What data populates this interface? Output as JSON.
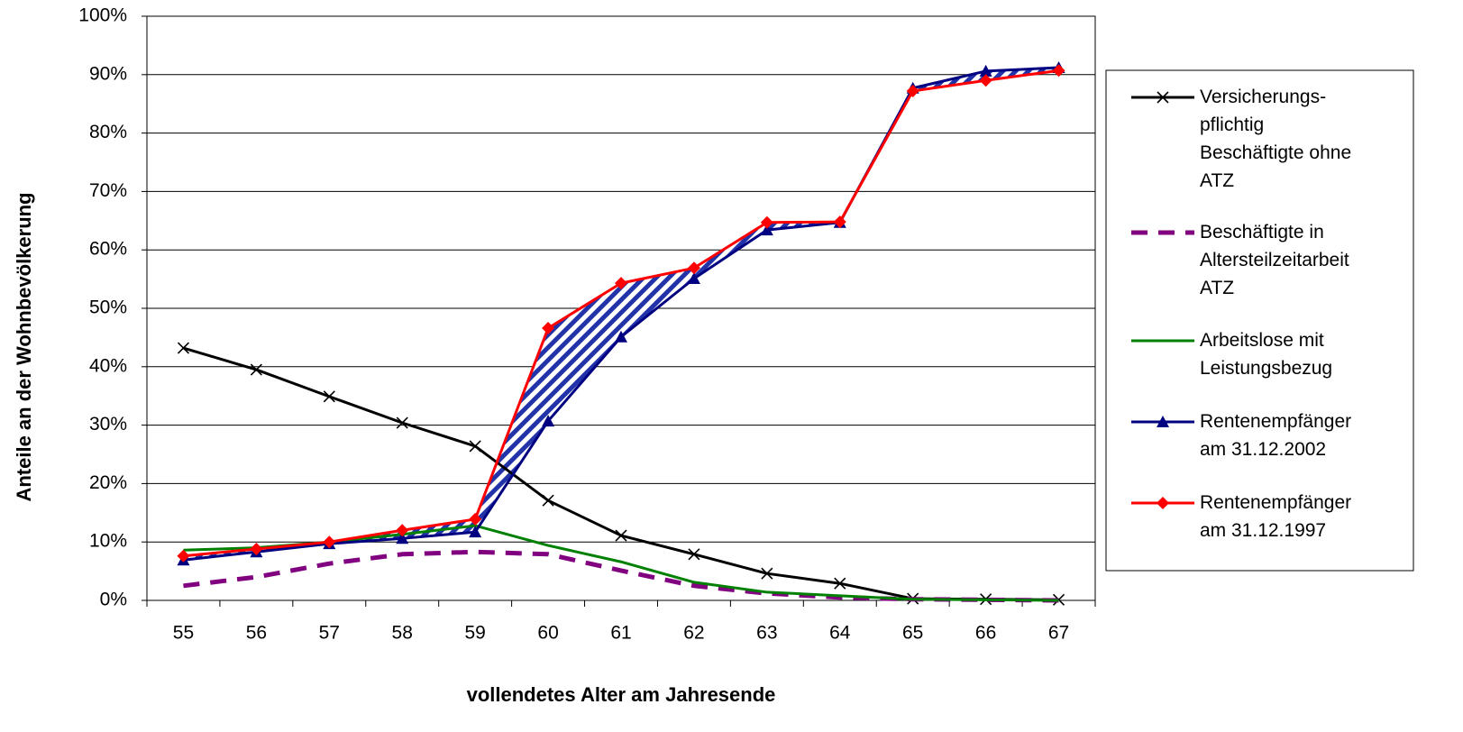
{
  "chart_data": {
    "type": "line",
    "x_label": "vollendetes Alter am Jahresende",
    "y_label": "Anteile an der Wohnbevölkerung",
    "categories": [
      "55",
      "56",
      "57",
      "58",
      "59",
      "60",
      "61",
      "62",
      "63",
      "64",
      "65",
      "66",
      "67"
    ],
    "ylim": [
      0,
      100
    ],
    "yticks": [
      {
        "value": 0,
        "label": "0%"
      },
      {
        "value": 10,
        "label": "10%"
      },
      {
        "value": 20,
        "label": "20%"
      },
      {
        "value": 30,
        "label": "30%"
      },
      {
        "value": 40,
        "label": "40%"
      },
      {
        "value": 50,
        "label": "50%"
      },
      {
        "value": 60,
        "label": "60%"
      },
      {
        "value": 70,
        "label": "70%"
      },
      {
        "value": 80,
        "label": "80%"
      },
      {
        "value": 90,
        "label": "90%"
      },
      {
        "value": 100,
        "label": "100%"
      }
    ],
    "grid": true,
    "legend": "right",
    "series": [
      {
        "name": "Versicherungs-\npflichtig\nBeschäftigte ohne\nATZ",
        "color": "#000000",
        "marker": "x",
        "dash": false,
        "values": [
          43.2,
          39.5,
          34.9,
          30.4,
          26.4,
          17.1,
          11.1,
          7.9,
          4.6,
          2.9,
          0.3,
          0.2,
          0.1
        ]
      },
      {
        "name": "Beschäftigte in\nAltersteilzeitarbeit\nATZ",
        "color": "#800080",
        "marker": "none",
        "dash": true,
        "values": [
          2.5,
          4.0,
          6.3,
          7.9,
          8.3,
          7.9,
          5.1,
          2.5,
          1.2,
          0.5,
          0.2,
          0.1,
          0.0
        ]
      },
      {
        "name": "Arbeitslose mit\nLeistungsbezug",
        "color": "#008000",
        "marker": "none",
        "dash": false,
        "values": [
          8.6,
          9.0,
          10.0,
          11.3,
          12.8,
          9.4,
          6.6,
          3.1,
          1.4,
          0.8,
          0.2,
          0.1,
          0.0
        ]
      },
      {
        "name": "Rentenempfänger\nam 31.12.2002",
        "color": "#000080",
        "marker": "triangle",
        "dash": false,
        "values": [
          6.9,
          8.3,
          9.7,
          10.6,
          11.7,
          30.7,
          45.1,
          55.1,
          63.4,
          64.7,
          87.7,
          90.6,
          91.2
        ]
      },
      {
        "name": "Rentenempfänger\nam 31.12.1997",
        "color": "#ff0000",
        "marker": "diamond",
        "dash": false,
        "values": [
          7.6,
          8.8,
          10.0,
          12.0,
          13.9,
          46.6,
          54.3,
          56.9,
          64.7,
          64.8,
          87.2,
          89.0,
          90.7
        ]
      }
    ]
  }
}
